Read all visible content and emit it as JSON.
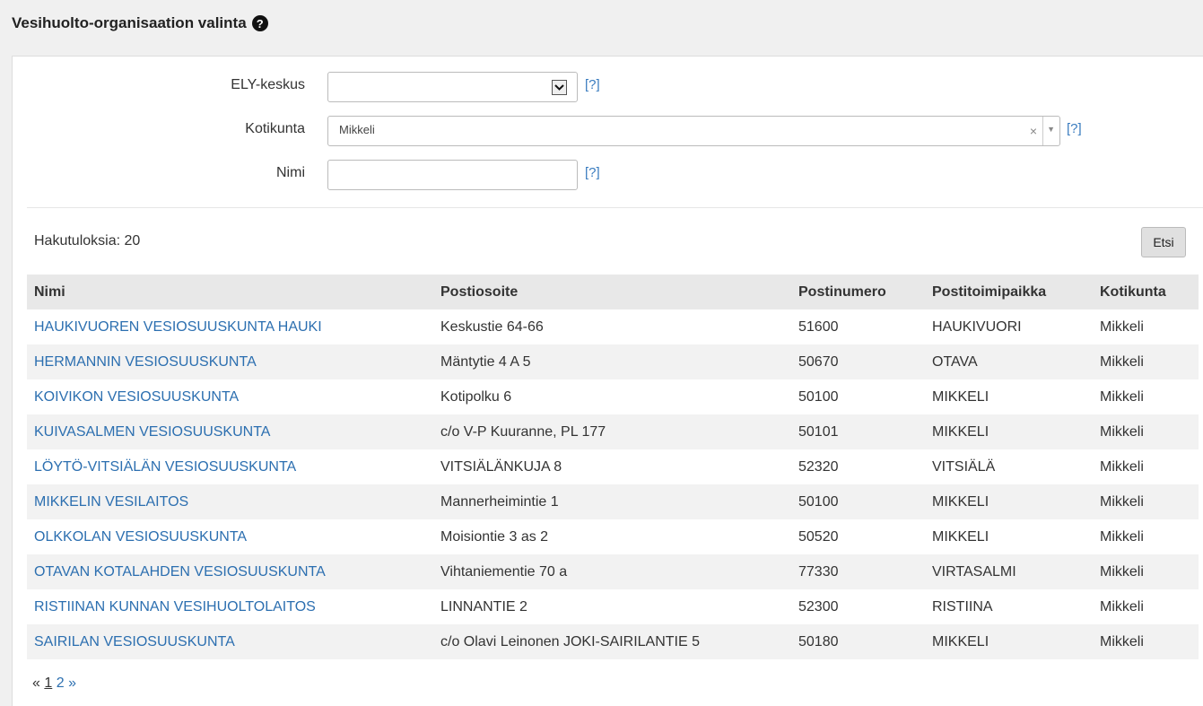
{
  "header": {
    "title": "Vesihuolto-organisaation valinta",
    "help_icon": "?"
  },
  "form": {
    "ely": {
      "label": "ELY-keskus",
      "value": "",
      "help": "[?]"
    },
    "kotikunta": {
      "label": "Kotikunta",
      "value": "Mikkeli",
      "clear": "×",
      "arrow": "▼",
      "help": "[?]"
    },
    "nimi": {
      "label": "Nimi",
      "value": "",
      "help": "[?]"
    }
  },
  "results": {
    "count_label": "Hakutuloksia: 20",
    "search_button": "Etsi",
    "columns": [
      "Nimi",
      "Postiosoite",
      "Postinumero",
      "Postitoimipaikka",
      "Kotikunta"
    ],
    "rows": [
      [
        "HAUKIVUOREN VESIOSUUSKUNTA HAUKI",
        "Keskustie 64-66",
        "51600",
        "HAUKIVUORI",
        "Mikkeli"
      ],
      [
        "HERMANNIN VESIOSUUSKUNTA",
        "Mäntytie 4 A 5",
        "50670",
        "OTAVA",
        "Mikkeli"
      ],
      [
        "KOIVIKON VESIOSUUSKUNTA",
        "Kotipolku 6",
        "50100",
        "MIKKELI",
        "Mikkeli"
      ],
      [
        "KUIVASALMEN VESIOSUUSKUNTA",
        "c/o V-P Kuuranne, PL 177",
        "50101",
        "MIKKELI",
        "Mikkeli"
      ],
      [
        "LÖYTÖ-VITSIÄLÄN VESIOSUUSKUNTA",
        "VITSIÄLÄNKUJA 8",
        "52320",
        "VITSIÄLÄ",
        "Mikkeli"
      ],
      [
        "MIKKELIN VESILAITOS",
        "Mannerheimintie 1",
        "50100",
        "MIKKELI",
        "Mikkeli"
      ],
      [
        "OLKKOLAN VESIOSUUSKUNTA",
        "Moisiontie 3 as 2",
        "50520",
        "MIKKELI",
        "Mikkeli"
      ],
      [
        "OTAVAN KOTALAHDEN VESIOSUUSKUNTA",
        "Vihtaniementie 70 a",
        "77330",
        "VIRTASALMI",
        "Mikkeli"
      ],
      [
        "RISTIINAN KUNNAN VESIHUOLTOLAITOS",
        "LINNANTIE 2",
        "52300",
        "RISTIINA",
        "Mikkeli"
      ],
      [
        "SAIRILAN VESIOSUUSKUNTA",
        "c/o Olavi Leinonen JOKI-SAIRILANTIE 5",
        "50180",
        "MIKKELI",
        "Mikkeli"
      ]
    ]
  },
  "pager": {
    "prev": "«",
    "pages": [
      "1",
      "2"
    ],
    "next": "»",
    "current": "1"
  }
}
